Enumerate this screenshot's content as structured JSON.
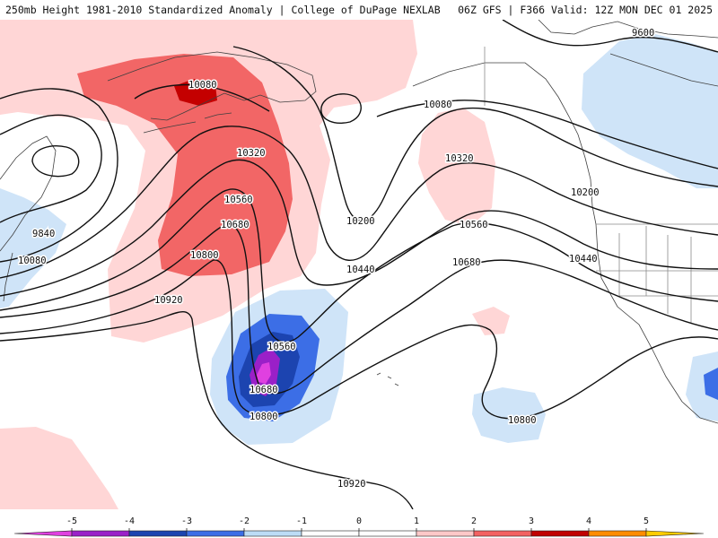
{
  "header": {
    "left": "250mb Height 1981-2010 Standardized Anomaly | College of DuPage NEXLAB",
    "right": "06Z GFS | F366 Valid: 12Z MON DEC 01 2025"
  },
  "contours": [
    "9600",
    "9840",
    "10080",
    "10080",
    "10080",
    "10200",
    "10200",
    "10320",
    "10320",
    "10440",
    "10440",
    "10560",
    "10560",
    "10560",
    "10680",
    "10680",
    "10680",
    "10800",
    "10800",
    "10800",
    "10920",
    "10920"
  ],
  "colorbar": {
    "ticks": [
      "-5",
      "-4",
      "-3",
      "-2",
      "-1",
      "0",
      "1",
      "2",
      "3",
      "4",
      "5"
    ],
    "colors": [
      "#e040e0",
      "#9a20c8",
      "#1c44b0",
      "#3c6ee6",
      "#bcdcf6",
      "#ffffff",
      "#ffffff",
      "#ffc8c8",
      "#f26262",
      "#c00000",
      "#ff8c00",
      "#ffcc00"
    ]
  }
}
